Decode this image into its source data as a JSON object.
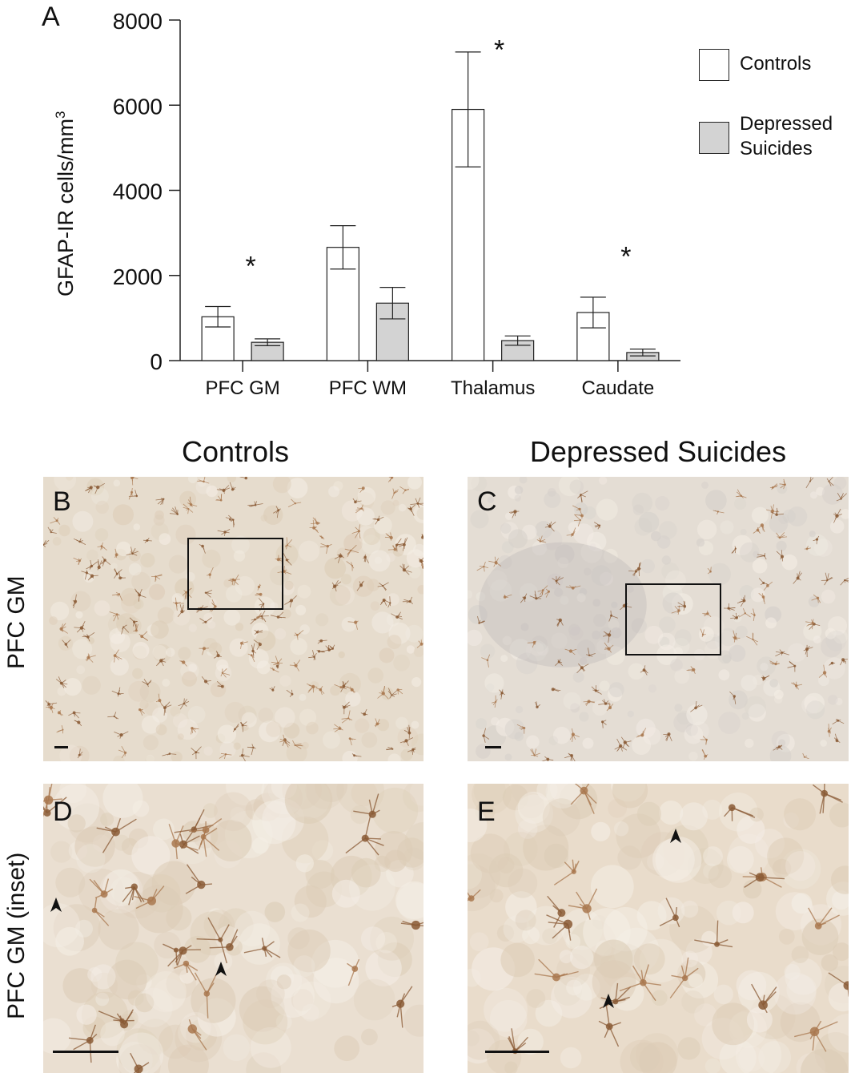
{
  "panel_letters": {
    "a": "A",
    "b": "B",
    "c": "C",
    "d": "D",
    "e": "E"
  },
  "column_titles": {
    "left": "Controls",
    "right": "Depressed Suicides"
  },
  "row_labels": {
    "top": "PFC GM",
    "bottom": "PFC GM (inset)"
  },
  "colors": {
    "controls_fill": "#ffffff",
    "suicides_fill": "#d3d3d3",
    "tissue_base": "#e6dccd",
    "cell_stain": "#8a5a35"
  },
  "icons": {
    "arrowhead": "arrowhead-icon",
    "inset_box": "inset-box",
    "scale_bar": "scale-bar"
  },
  "chart_data": {
    "type": "bar",
    "title": "",
    "xlabel": "",
    "ylabel_main": "GFAP-IR cells/mm",
    "ylabel_sup": "3",
    "ylim": [
      0,
      8000
    ],
    "yticks": [
      0,
      2000,
      4000,
      6000,
      8000
    ],
    "grid": false,
    "legend_position": "top-right",
    "categories": [
      "PFC GM",
      "PFC WM",
      "Thalamus",
      "Caudate"
    ],
    "series": [
      {
        "name": "Controls",
        "values": [
          1030,
          2660,
          5900,
          1130
        ],
        "errors": [
          240,
          510,
          1350,
          360
        ]
      },
      {
        "name": "Depressed Suicides",
        "values": [
          430,
          1350,
          470,
          190
        ],
        "errors": [
          80,
          370,
          110,
          80
        ]
      }
    ],
    "significance": [
      "*",
      "",
      "*",
      "*"
    ],
    "legend_labels": {
      "controls": "Controls",
      "suicides_line1": "Depressed",
      "suicides_line2": "Suicides"
    }
  }
}
